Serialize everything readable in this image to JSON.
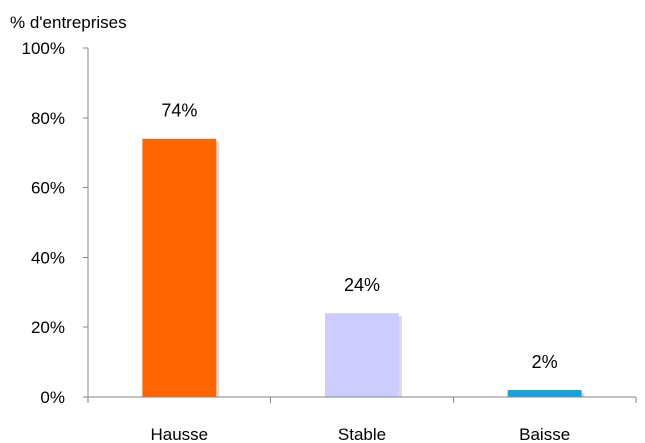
{
  "chart_data": {
    "type": "bar",
    "ylabel": "% d'entreprises",
    "categories": [
      "Hausse",
      "Stable",
      "Baisse"
    ],
    "values": [
      74,
      24,
      2
    ],
    "data_labels": [
      "74%",
      "24%",
      "2%"
    ],
    "bar_colors": [
      "#ff6600",
      "#ccccff",
      "#1ea0d6"
    ],
    "shadow_color": "#bfbfbf",
    "axis_color": "#868686",
    "ylim": [
      0,
      100
    ],
    "y_ticks": [
      0,
      20,
      40,
      60,
      80,
      100
    ],
    "y_tick_labels": [
      "0%",
      "20%",
      "40%",
      "60%",
      "80%",
      "100%"
    ],
    "grid": false,
    "legend": "none"
  }
}
